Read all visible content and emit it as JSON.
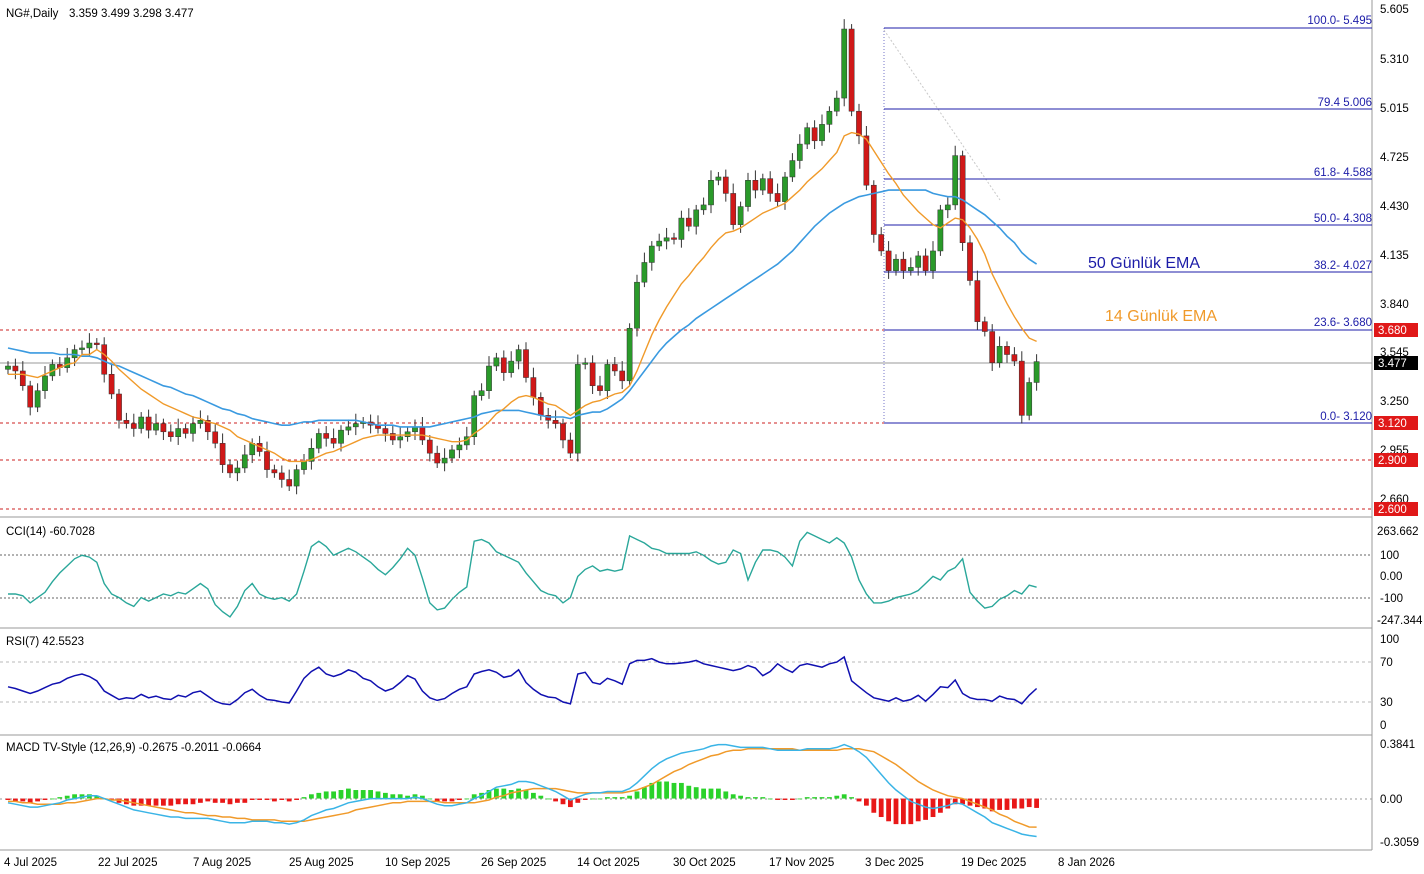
{
  "header": {
    "symbol_label": "NG#,Daily",
    "ohlc_label": "3.359 3.499 3.298 3.477"
  },
  "colors": {
    "bull": "#2a9a2a",
    "bear": "#d01818",
    "ema14": "#f09a2a",
    "ema50": "#3a9ae0",
    "cci": "#2aa79a",
    "rsi": "#1010b0",
    "macd_line": "#3ab4e6",
    "signal_line": "#f09a2a",
    "hist_pos": "#2ad22a",
    "hist_neg": "#e81818",
    "fib": "#1c1ca8",
    "level_line": "#cc2020",
    "level_tag": "#e01818"
  },
  "price_axis": {
    "ticks": [
      "5.605",
      "5.310",
      "5.015",
      "4.725",
      "4.430",
      "4.135",
      "3.840",
      "3.545",
      "3.250",
      "2.955",
      "2.660"
    ],
    "current_tag": "3.477"
  },
  "level_tags": [
    "3.680",
    "3.120",
    "2.900",
    "2.600"
  ],
  "fib_labels": [
    "100.0- 5.495",
    "79.4 5.006",
    "61.8- 4.588",
    "50.0- 4.308",
    "38.2- 4.027",
    "23.6- 3.680",
    "0.0- 3.120"
  ],
  "annotations": {
    "ema50_label": "50 Günlük EMA",
    "ema14_label": "14 Günlük EMA"
  },
  "cci": {
    "label": "CCI(14) -60.7028",
    "axis_ticks": [
      "263.662",
      "100",
      "0.00",
      "-100",
      "-247.344"
    ]
  },
  "rsi": {
    "label": "RSI(7) 42.5523",
    "axis_ticks": [
      "100",
      "70",
      "30",
      "0"
    ]
  },
  "macd": {
    "label": "MACD TV-Style (12,26,9) -0.2675 -0.2011 -0.0664",
    "axis_ticks": [
      "0.3841",
      "0.00",
      "-0.3059"
    ]
  },
  "x_axis": {
    "date_labels": [
      "4 Jul 2025",
      "22 Jul 2025",
      "7 Aug 2025",
      "25 Aug 2025",
      "10 Sep 2025",
      "26 Sep 2025",
      "14 Oct 2025",
      "30 Oct 2025",
      "17 Nov 2025",
      "3 Dec 2025",
      "19 Dec 2025",
      "8 Jan 2026"
    ]
  },
  "chart_data": {
    "type": "candlestick",
    "title": "NG#,Daily",
    "price_range": [
      2.55,
      5.64
    ],
    "fibonacci": [
      {
        "level": "100.0",
        "price": 5.495
      },
      {
        "level": "79.4",
        "price": 5.006
      },
      {
        "level": "61.8",
        "price": 4.588
      },
      {
        "level": "50.0",
        "price": 4.308
      },
      {
        "level": "38.2",
        "price": 4.027
      },
      {
        "level": "23.6",
        "price": 3.68
      },
      {
        "level": "0.0",
        "price": 3.12
      }
    ],
    "horizontal_levels": [
      3.68,
      3.12,
      2.9,
      2.6
    ],
    "last_price": 3.477,
    "closes": [
      3.45,
      3.42,
      3.33,
      3.2,
      3.3,
      3.39,
      3.46,
      3.44,
      3.5,
      3.55,
      3.56,
      3.59,
      3.58,
      3.4,
      3.28,
      3.12,
      3.1,
      3.07,
      3.14,
      3.06,
      3.1,
      3.05,
      3.02,
      3.07,
      3.04,
      3.1,
      3.12,
      3.05,
      2.98,
      2.85,
      2.8,
      2.83,
      2.91,
      2.98,
      2.93,
      2.82,
      2.8,
      2.76,
      2.72,
      2.82,
      2.87,
      2.95,
      3.04,
      3.01,
      2.98,
      3.06,
      3.08,
      3.1,
      3.11,
      3.09,
      3.07,
      3.04,
      3.0,
      3.02,
      3.05,
      3.08,
      3.0,
      2.92,
      2.86,
      2.89,
      2.94,
      2.97,
      3.02,
      3.27,
      3.3,
      3.45,
      3.5,
      3.41,
      3.48,
      3.55,
      3.38,
      3.26,
      3.15,
      3.12,
      3.1,
      3.0,
      2.92,
      3.46,
      3.47,
      3.33,
      3.3,
      3.46,
      3.42,
      3.36,
      3.68,
      3.96,
      4.08,
      4.18,
      4.21,
      4.23,
      4.22,
      4.35,
      4.3,
      4.4,
      4.43,
      4.58,
      4.6,
      4.5,
      4.31,
      4.42,
      4.58,
      4.52,
      4.59,
      4.5,
      4.45,
      4.6,
      4.7,
      4.8,
      4.9,
      4.82,
      4.92,
      5.0,
      5.08,
      5.5,
      5.0,
      4.85,
      4.55,
      4.25,
      4.15,
      4.03,
      4.1,
      4.03,
      4.05,
      4.12,
      4.03,
      4.15,
      4.4,
      4.43,
      4.73,
      4.2,
      3.97,
      3.72,
      3.66,
      3.47,
      3.57,
      3.52,
      3.48,
      3.15,
      3.35,
      3.477
    ],
    "ema14": [
      3.4,
      3.4,
      3.4,
      3.39,
      3.38,
      3.4,
      3.42,
      3.44,
      3.46,
      3.47,
      3.52,
      3.52,
      3.55,
      3.52,
      3.48,
      3.43,
      3.39,
      3.35,
      3.31,
      3.28,
      3.25,
      3.22,
      3.2,
      3.18,
      3.16,
      3.14,
      3.13,
      3.11,
      3.1,
      3.08,
      3.06,
      3.02,
      3.0,
      2.98,
      2.96,
      2.94,
      2.92,
      2.89,
      2.87,
      2.87,
      2.87,
      2.88,
      2.9,
      2.92,
      2.93,
      2.95,
      2.97,
      2.99,
      3.01,
      3.02,
      3.03,
      3.03,
      3.03,
      3.03,
      3.03,
      3.03,
      3.03,
      3.02,
      3.01,
      3.0,
      2.99,
      2.99,
      3.0,
      3.04,
      3.07,
      3.11,
      3.16,
      3.19,
      3.23,
      3.26,
      3.27,
      3.26,
      3.24,
      3.22,
      3.21,
      3.18,
      3.15,
      3.18,
      3.21,
      3.23,
      3.24,
      3.26,
      3.28,
      3.29,
      3.33,
      3.42,
      3.53,
      3.64,
      3.73,
      3.81,
      3.88,
      3.95,
      4.0,
      4.06,
      4.11,
      4.17,
      4.22,
      4.26,
      4.27,
      4.29,
      4.32,
      4.35,
      4.38,
      4.4,
      4.42,
      4.44,
      4.48,
      4.52,
      4.57,
      4.61,
      4.65,
      4.7,
      4.75,
      4.85,
      4.87,
      4.86,
      4.83,
      4.76,
      4.69,
      4.62,
      4.56,
      4.49,
      4.44,
      4.39,
      4.35,
      4.31,
      4.29,
      4.32,
      4.35,
      4.34,
      4.29,
      4.22,
      4.13,
      4.01,
      3.92,
      3.83,
      3.75,
      3.68,
      3.62,
      3.6
    ],
    "ema50": [
      3.56,
      3.55,
      3.54,
      3.53,
      3.53,
      3.53,
      3.53,
      3.52,
      3.52,
      3.52,
      3.51,
      3.51,
      3.5,
      3.48,
      3.46,
      3.45,
      3.43,
      3.41,
      3.39,
      3.37,
      3.35,
      3.33,
      3.32,
      3.3,
      3.28,
      3.27,
      3.25,
      3.23,
      3.21,
      3.19,
      3.18,
      3.16,
      3.15,
      3.13,
      3.12,
      3.11,
      3.1,
      3.09,
      3.09,
      3.1,
      3.11,
      3.11,
      3.12,
      3.12,
      3.12,
      3.12,
      3.12,
      3.12,
      3.11,
      3.1,
      3.09,
      3.09,
      3.09,
      3.08,
      3.08,
      3.08,
      3.08,
      3.08,
      3.09,
      3.1,
      3.11,
      3.12,
      3.13,
      3.14,
      3.16,
      3.17,
      3.18,
      3.18,
      3.18,
      3.18,
      3.17,
      3.16,
      3.15,
      3.14,
      3.14,
      3.14,
      3.13,
      3.15,
      3.16,
      3.17,
      3.17,
      3.19,
      3.22,
      3.25,
      3.3,
      3.36,
      3.42,
      3.48,
      3.54,
      3.59,
      3.63,
      3.67,
      3.7,
      3.74,
      3.77,
      3.8,
      3.83,
      3.86,
      3.89,
      3.92,
      3.95,
      3.98,
      4.01,
      4.04,
      4.07,
      4.11,
      4.15,
      4.2,
      4.25,
      4.3,
      4.34,
      4.38,
      4.41,
      4.44,
      4.46,
      4.48,
      4.49,
      4.5,
      4.51,
      4.52,
      4.52,
      4.52,
      4.52,
      4.52,
      4.52,
      4.5,
      4.49,
      4.48,
      4.48,
      4.46,
      4.43,
      4.4,
      4.37,
      4.33,
      4.29,
      4.24,
      4.2,
      4.14,
      4.1,
      4.07
    ],
    "cci_range": [
      -247.344,
      263.662
    ],
    "cci": [
      -100,
      -100,
      -110,
      -150,
      -120,
      -90,
      -30,
      20,
      60,
      100,
      120,
      110,
      80,
      -40,
      -100,
      -120,
      -150,
      -170,
      -120,
      -140,
      -120,
      -100,
      -110,
      -90,
      -100,
      -70,
      -40,
      -70,
      -160,
      -200,
      -230,
      -170,
      -80,
      -40,
      -100,
      -120,
      -130,
      -120,
      -140,
      -100,
      30,
      170,
      200,
      170,
      120,
      140,
      160,
      140,
      110,
      80,
      40,
      10,
      50,
      100,
      160,
      120,
      -10,
      -150,
      -190,
      -180,
      -130,
      -90,
      -60,
      200,
      210,
      190,
      140,
      120,
      100,
      80,
      20,
      -30,
      -80,
      -100,
      -110,
      -150,
      -120,
      0,
      40,
      60,
      30,
      40,
      30,
      40,
      230,
      210,
      190,
      160,
      150,
      130,
      130,
      130,
      130,
      140,
      120,
      90,
      70,
      80,
      150,
      130,
      -20,
      80,
      150,
      150,
      140,
      110,
      60,
      200,
      250,
      230,
      210,
      190,
      220,
      190,
      110,
      -20,
      -100,
      -150,
      -150,
      -140,
      -120,
      -110,
      -100,
      -80,
      -40,
      0,
      -20,
      30,
      50,
      100,
      -90,
      -140,
      -180,
      -170,
      -130,
      -110,
      -80,
      -100,
      -50,
      -61
    ],
    "rsi": [
      45,
      43,
      40,
      37,
      40,
      44,
      48,
      50,
      55,
      58,
      60,
      57,
      52,
      40,
      35,
      30,
      32,
      31,
      36,
      32,
      34,
      31,
      30,
      35,
      33,
      38,
      40,
      34,
      28,
      25,
      24,
      30,
      38,
      42,
      35,
      30,
      29,
      27,
      26,
      40,
      55,
      63,
      68,
      60,
      57,
      60,
      65,
      62,
      55,
      52,
      45,
      40,
      43,
      50,
      58,
      54,
      40,
      32,
      29,
      31,
      37,
      42,
      45,
      60,
      63,
      65,
      62,
      56,
      58,
      65,
      50,
      42,
      36,
      33,
      32,
      27,
      25,
      60,
      62,
      50,
      48,
      55,
      52,
      48,
      72,
      76,
      76,
      78,
      74,
      72,
      72,
      73,
      74,
      76,
      72,
      70,
      68,
      66,
      64,
      66,
      70,
      67,
      58,
      63,
      72,
      66,
      62,
      70,
      72,
      70,
      68,
      72,
      74,
      80,
      52,
      45,
      38,
      32,
      30,
      28,
      32,
      28,
      30,
      35,
      28,
      36,
      45,
      44,
      53,
      37,
      32,
      30,
      30,
      28,
      34,
      31,
      30,
      25,
      35,
      43
    ],
    "macd_range": [
      -0.3059,
      0.3841
    ],
    "macd": [
      -0.03,
      -0.04,
      -0.05,
      -0.06,
      -0.06,
      -0.05,
      -0.04,
      -0.03,
      -0.01,
      0.0,
      0.01,
      0.02,
      0.02,
      0.0,
      -0.02,
      -0.04,
      -0.06,
      -0.08,
      -0.09,
      -0.1,
      -0.11,
      -0.12,
      -0.13,
      -0.13,
      -0.14,
      -0.14,
      -0.14,
      -0.14,
      -0.15,
      -0.16,
      -0.17,
      -0.17,
      -0.17,
      -0.16,
      -0.16,
      -0.16,
      -0.17,
      -0.17,
      -0.18,
      -0.17,
      -0.15,
      -0.12,
      -0.1,
      -0.08,
      -0.07,
      -0.05,
      -0.03,
      -0.02,
      -0.01,
      0.0,
      0.0,
      0.0,
      0.0,
      0.0,
      0.0,
      0.01,
      0.0,
      -0.02,
      -0.04,
      -0.05,
      -0.05,
      -0.04,
      -0.03,
      0.0,
      0.02,
      0.05,
      0.08,
      0.09,
      0.1,
      0.12,
      0.12,
      0.11,
      0.09,
      0.07,
      0.05,
      0.02,
      -0.01,
      0.01,
      0.03,
      0.04,
      0.04,
      0.05,
      0.05,
      0.05,
      0.07,
      0.11,
      0.16,
      0.21,
      0.25,
      0.28,
      0.3,
      0.32,
      0.33,
      0.34,
      0.35,
      0.37,
      0.38,
      0.38,
      0.37,
      0.36,
      0.36,
      0.36,
      0.36,
      0.35,
      0.34,
      0.34,
      0.34,
      0.34,
      0.35,
      0.35,
      0.35,
      0.35,
      0.36,
      0.38,
      0.36,
      0.33,
      0.29,
      0.23,
      0.17,
      0.11,
      0.06,
      0.02,
      -0.02,
      -0.04,
      -0.06,
      -0.07,
      -0.06,
      -0.05,
      -0.03,
      -0.04,
      -0.07,
      -0.1,
      -0.13,
      -0.17,
      -0.19,
      -0.21,
      -0.23,
      -0.25,
      -0.26,
      -0.267
    ],
    "signal": [
      -0.02,
      -0.02,
      -0.03,
      -0.03,
      -0.04,
      -0.04,
      -0.04,
      -0.04,
      -0.03,
      -0.03,
      -0.02,
      -0.01,
      0.0,
      0.0,
      -0.01,
      -0.01,
      -0.02,
      -0.03,
      -0.04,
      -0.05,
      -0.06,
      -0.07,
      -0.08,
      -0.09,
      -0.1,
      -0.1,
      -0.11,
      -0.12,
      -0.12,
      -0.13,
      -0.13,
      -0.14,
      -0.14,
      -0.15,
      -0.15,
      -0.15,
      -0.15,
      -0.16,
      -0.16,
      -0.16,
      -0.16,
      -0.15,
      -0.14,
      -0.13,
      -0.12,
      -0.11,
      -0.1,
      -0.08,
      -0.07,
      -0.06,
      -0.05,
      -0.04,
      -0.03,
      -0.03,
      -0.02,
      -0.02,
      -0.02,
      -0.02,
      -0.02,
      -0.03,
      -0.03,
      -0.03,
      -0.03,
      -0.03,
      -0.02,
      -0.01,
      0.01,
      0.02,
      0.04,
      0.05,
      0.06,
      0.07,
      0.07,
      0.07,
      0.07,
      0.06,
      0.05,
      0.04,
      0.04,
      0.04,
      0.04,
      0.04,
      0.04,
      0.04,
      0.05,
      0.06,
      0.08,
      0.1,
      0.13,
      0.16,
      0.19,
      0.21,
      0.24,
      0.26,
      0.28,
      0.3,
      0.31,
      0.33,
      0.34,
      0.34,
      0.35,
      0.35,
      0.35,
      0.35,
      0.35,
      0.35,
      0.35,
      0.34,
      0.34,
      0.34,
      0.34,
      0.34,
      0.34,
      0.35,
      0.35,
      0.35,
      0.34,
      0.33,
      0.3,
      0.27,
      0.24,
      0.2,
      0.16,
      0.12,
      0.09,
      0.06,
      0.04,
      0.02,
      0.01,
      0.0,
      -0.02,
      -0.04,
      -0.06,
      -0.08,
      -0.11,
      -0.13,
      -0.16,
      -0.18,
      -0.2,
      -0.201
    ]
  }
}
